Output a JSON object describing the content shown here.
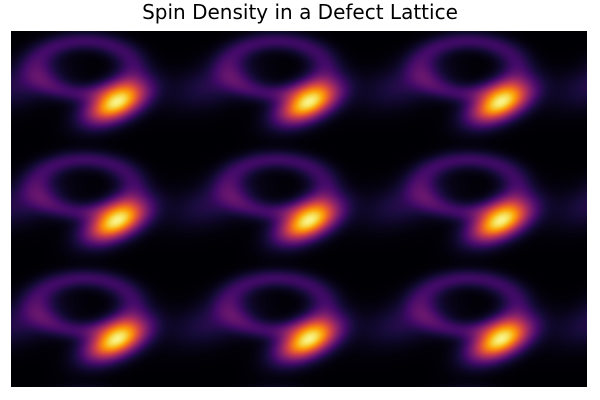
{
  "chart_data": {
    "type": "heatmap",
    "title": "Spin Density in a Defect Lattice",
    "xlabel": "",
    "ylabel": "",
    "colormap": "inferno",
    "grid": false,
    "legend": "none",
    "colorbar": false,
    "lattice": {
      "columns": 3,
      "rows": 3,
      "peak_orientation": "tilted ellipse rising to the right",
      "defect_row_order": [
        "upper",
        "middle",
        "lower"
      ]
    }
  }
}
